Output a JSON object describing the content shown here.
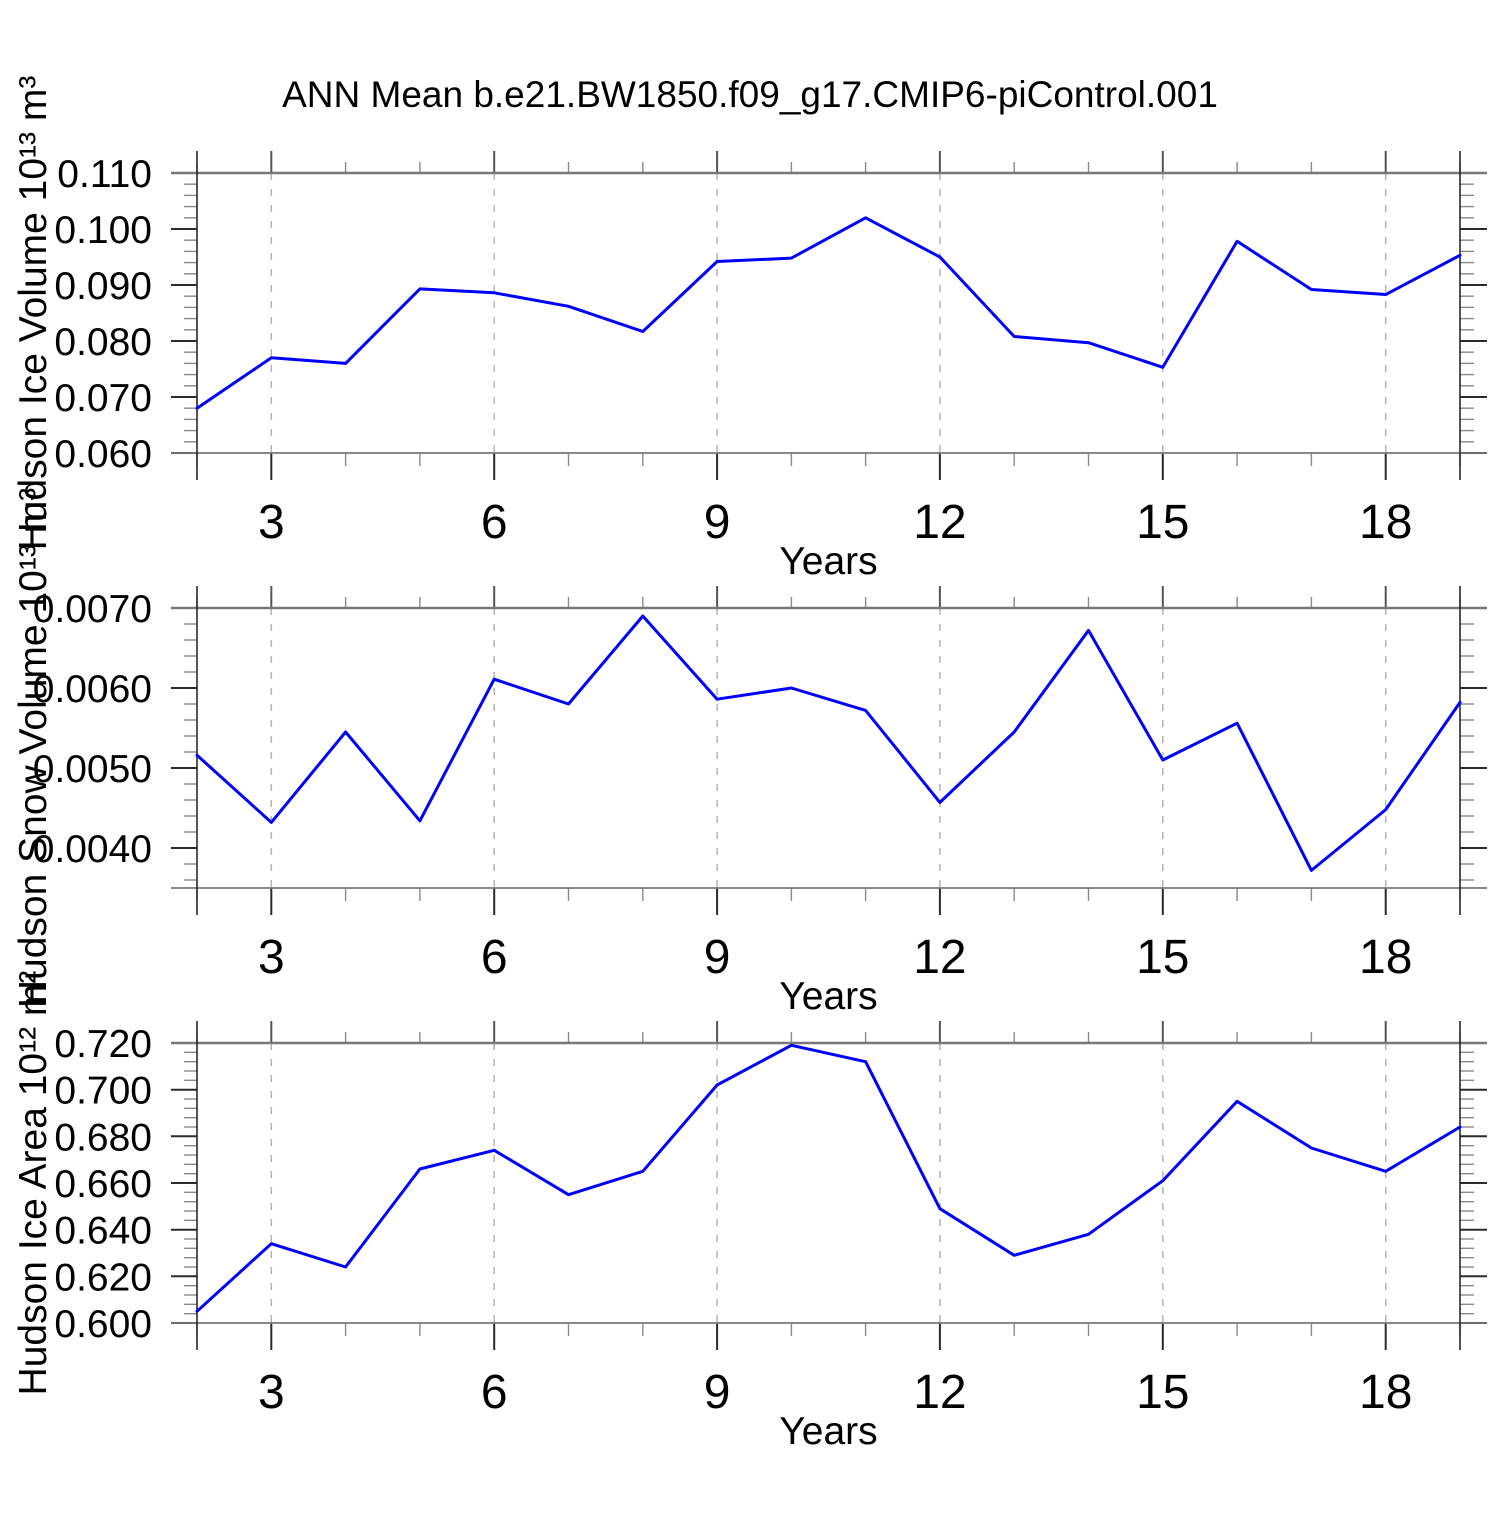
{
  "title": "ANN Mean b.e21.BW1850.f09_g17.CMIP6-piControl.001",
  "style": {
    "background": "#ffffff",
    "line_color": "#0000ff",
    "grid_color": "#b4b4b4",
    "major_tick_color": "#2b2b2b",
    "minor_tick_color": "#8a8a8a",
    "spine_top_bottom_color": "#787878",
    "spine_side_color": "#1c1c1c",
    "label_color": "#000000"
  },
  "chart_data": [
    {
      "type": "line",
      "name": "hudson-ice-volume",
      "ylabel": "Hudson Ice Volume 10¹³ m³",
      "xlabel": "Years",
      "x": [
        2,
        3,
        4,
        5,
        6,
        7,
        8,
        9,
        10,
        11,
        12,
        13,
        14,
        15,
        16,
        17,
        18,
        19
      ],
      "values": [
        0.068,
        0.077,
        0.076,
        0.0893,
        0.0886,
        0.0862,
        0.0817,
        0.0942,
        0.0948,
        0.102,
        0.095,
        0.0808,
        0.0797,
        0.0753,
        0.0978,
        0.0892,
        0.0883,
        0.0953
      ],
      "xlim": [
        2,
        19
      ],
      "ylim": [
        0.06,
        0.11
      ],
      "xticks": [
        3,
        6,
        9,
        12,
        15,
        18
      ],
      "xtick_minor_step": 1,
      "ytick_values": [
        0.06,
        0.07,
        0.08,
        0.09,
        0.1,
        0.11
      ],
      "ytick_labels": [
        "0.060",
        "0.070",
        "0.080",
        "0.090",
        "0.100",
        "0.110"
      ],
      "ytick_minor_step": 0.002,
      "grid": "vertical-dashed",
      "legend": "none"
    },
    {
      "type": "line",
      "name": "hudson-snow-volume",
      "ylabel": "Hudson Snow Volume 10¹³ m³",
      "xlabel": "Years",
      "x": [
        2,
        3,
        4,
        5,
        6,
        7,
        8,
        9,
        10,
        11,
        12,
        13,
        14,
        15,
        16,
        17,
        18,
        19
      ],
      "values": [
        0.00516,
        0.00432,
        0.00545,
        0.00434,
        0.00611,
        0.0058,
        0.0069,
        0.00586,
        0.006,
        0.00572,
        0.00457,
        0.00545,
        0.00672,
        0.0051,
        0.00556,
        0.00372,
        0.00448,
        0.00582
      ],
      "xlim": [
        2,
        19
      ],
      "ylim": [
        0.0035,
        0.007
      ],
      "xticks": [
        3,
        6,
        9,
        12,
        15,
        18
      ],
      "xtick_minor_step": 1,
      "ytick_values": [
        0.004,
        0.005,
        0.006,
        0.007
      ],
      "ytick_labels": [
        "0.0040",
        "0.0050",
        "0.0060",
        "0.0070"
      ],
      "ytick_minor_step": 0.0002,
      "grid": "vertical-dashed",
      "legend": "none"
    },
    {
      "type": "line",
      "name": "hudson-ice-area",
      "ylabel": "Hudson Ice Area 10¹² m²",
      "xlabel": "Years",
      "x": [
        2,
        3,
        4,
        5,
        6,
        7,
        8,
        9,
        10,
        11,
        12,
        13,
        14,
        15,
        16,
        17,
        18,
        19
      ],
      "values": [
        0.605,
        0.634,
        0.624,
        0.666,
        0.674,
        0.655,
        0.665,
        0.702,
        0.719,
        0.712,
        0.649,
        0.629,
        0.638,
        0.661,
        0.695,
        0.675,
        0.665,
        0.684
      ],
      "xlim": [
        2,
        19
      ],
      "ylim": [
        0.6,
        0.72
      ],
      "xticks": [
        3,
        6,
        9,
        12,
        15,
        18
      ],
      "xtick_minor_step": 1,
      "ytick_values": [
        0.6,
        0.62,
        0.64,
        0.66,
        0.68,
        0.7,
        0.72
      ],
      "ytick_labels": [
        "0.600",
        "0.620",
        "0.640",
        "0.660",
        "0.680",
        "0.700",
        "0.720"
      ],
      "ytick_minor_step": 0.004,
      "grid": "vertical-dashed",
      "legend": "none"
    }
  ]
}
